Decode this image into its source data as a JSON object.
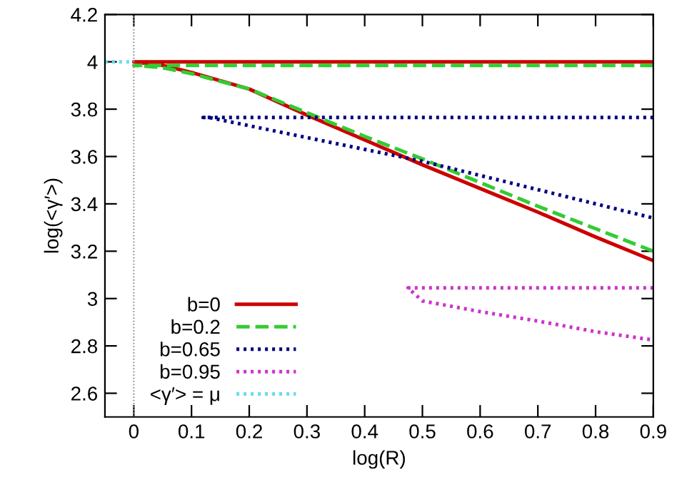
{
  "chart_data": {
    "type": "line",
    "xlabel": "log(R)",
    "ylabel": "log(<γ′>)",
    "xlim": [
      -0.05,
      0.9
    ],
    "xticks": [
      0,
      0.1,
      0.2,
      0.3,
      0.4,
      0.5,
      0.6,
      0.7,
      0.8,
      0.9
    ],
    "ylim": [
      2.5,
      4.2
    ],
    "yticks": [
      2.6,
      2.8,
      3,
      3.2,
      3.4,
      3.6,
      3.8,
      4,
      4.2
    ],
    "grid": false,
    "legend": "bottom left",
    "ref_lines": [
      {
        "axis": "x",
        "value": 0,
        "color": "#999999",
        "line_style": "dotted"
      }
    ],
    "series": [
      {
        "name": "b=0",
        "color": "#cc0000",
        "line_style": "solid",
        "x": [
          0.9,
          0,
          0.05,
          0.1,
          0.2,
          0.3,
          0.4,
          0.5,
          0.6,
          0.7,
          0.8,
          0.9
        ],
        "values": [
          4.0,
          4.0,
          3.985,
          3.955,
          3.885,
          3.775,
          3.67,
          3.565,
          3.465,
          3.365,
          3.26,
          3.16
        ]
      },
      {
        "name": "b=0.2",
        "color": "#33cc33",
        "line_style": "dashed",
        "x": [
          0.9,
          0,
          0.05,
          0.1,
          0.2,
          0.3,
          0.4,
          0.5,
          0.6,
          0.7,
          0.8,
          0.9
        ],
        "values": [
          3.985,
          3.985,
          3.975,
          3.95,
          3.885,
          3.785,
          3.685,
          3.59,
          3.49,
          3.39,
          3.295,
          3.2
        ]
      },
      {
        "name": "b=0.65",
        "color": "#000080",
        "line_style": "dotted",
        "x": [
          0.9,
          0.12,
          0.13,
          0.3,
          0.5,
          0.7,
          0.9
        ],
        "values": [
          3.765,
          3.765,
          3.765,
          3.68,
          3.58,
          3.46,
          3.34
        ]
      },
      {
        "name": "b=0.95",
        "color": "#cc33cc",
        "line_style": "dotted",
        "x": [
          0.9,
          0.475,
          0.5,
          0.6,
          0.7,
          0.8,
          0.9
        ],
        "values": [
          3.045,
          3.045,
          2.99,
          2.945,
          2.905,
          2.86,
          2.825
        ]
      },
      {
        "name": "<γ′> = μ",
        "color": "#66ddee",
        "line_style": "dotted",
        "x": [
          -0.05,
          0
        ],
        "values": [
          4.0,
          4.0
        ]
      }
    ]
  }
}
